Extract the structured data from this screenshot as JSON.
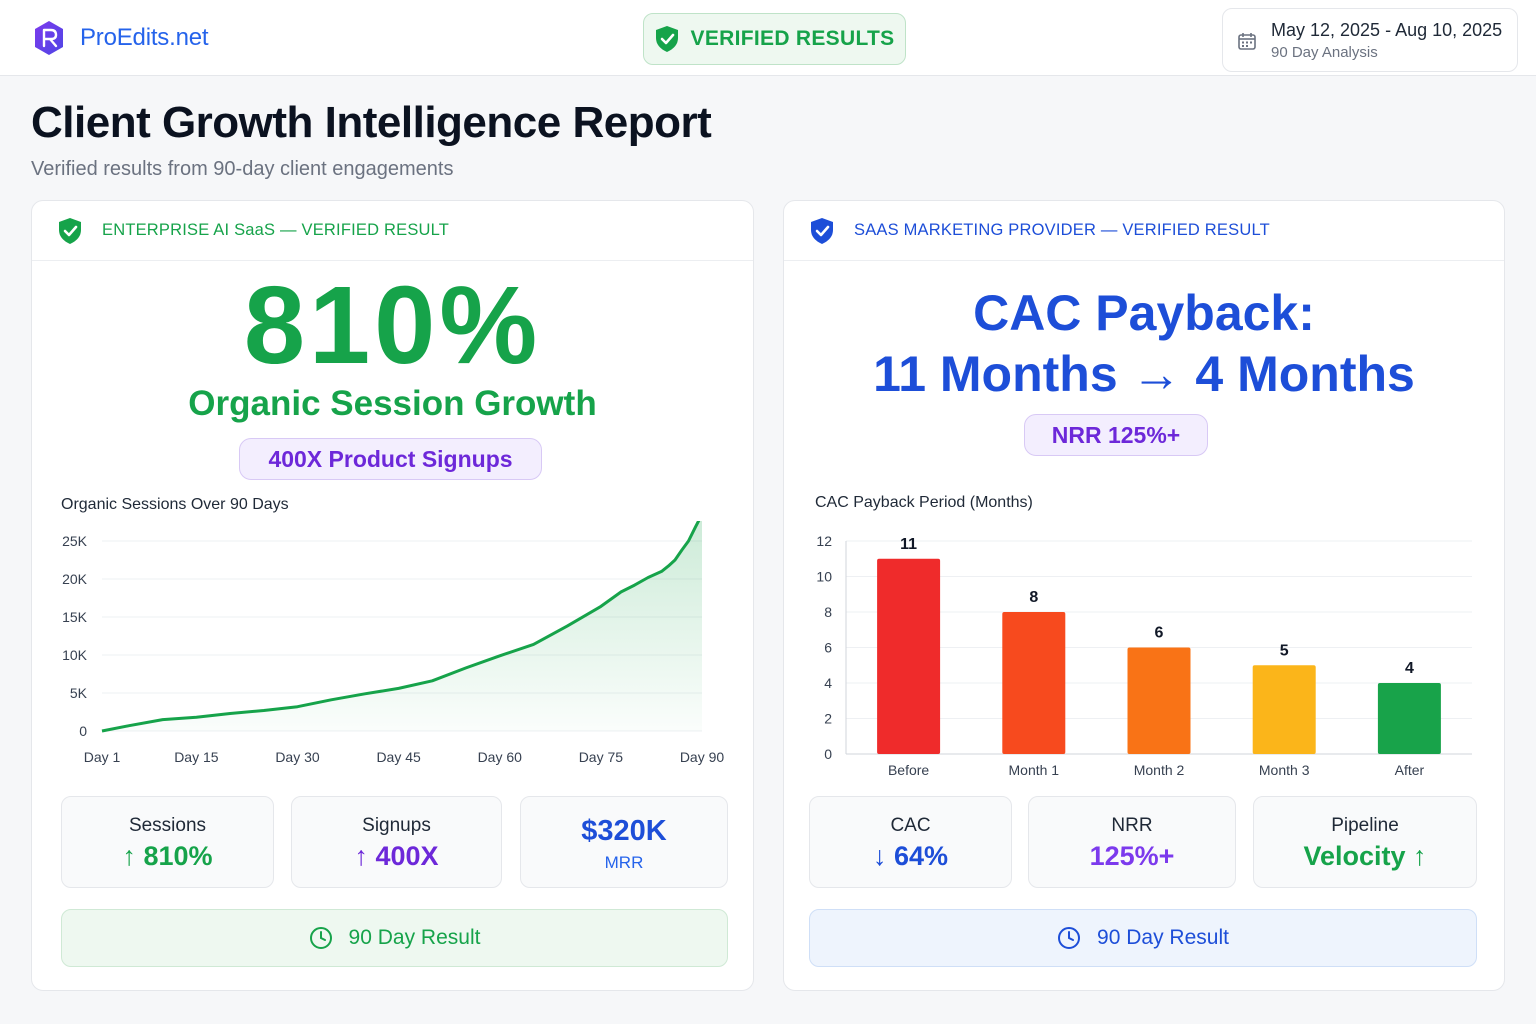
{
  "header": {
    "brand_name": "ProEdits.net",
    "verified_label": "VERIFIED RESULTS",
    "date_range": "May 12, 2025 - Aug 10, 2025",
    "date_caption": "90 Day Analysis"
  },
  "page": {
    "title": "Client Growth Intelligence Report",
    "subtitle": "Verified results from 90-day client engagements"
  },
  "left_card": {
    "header_label": "ENTERPRISE AI SaaS — VERIFIED RESULT",
    "headline_value": "810%",
    "headline_label": "Organic Session Growth",
    "badge": "400X Product Signups",
    "stats": [
      {
        "title": "Sessions",
        "value": "↑ 810%"
      },
      {
        "title": "Signups",
        "value": "↑ 400X"
      },
      {
        "value": "$320K",
        "title": "MRR"
      }
    ],
    "result_label": "90 Day Result"
  },
  "right_card": {
    "header_label": "SAAS MARKETING PROVIDER — VERIFIED RESULT",
    "headline_line1": "CAC Payback:",
    "headline_line2": "11 Months → 4 Months",
    "badge": "NRR 125%+",
    "stats": [
      {
        "title": "CAC",
        "value": "↓ 64%"
      },
      {
        "title": "NRR",
        "value": "125%+"
      },
      {
        "title": "Pipeline",
        "value": "Velocity ↑"
      }
    ],
    "result_label": "90 Day Result"
  },
  "colors": {
    "green": "#16a34a",
    "blue": "#1d4ed8",
    "purple": "#6d28d9",
    "bar_colors": [
      "#ef2b2b",
      "#f74a1e",
      "#f97316",
      "#fbb51a",
      "#18a34a"
    ]
  },
  "chart_data": [
    {
      "type": "line",
      "title": "Organic Sessions Over 90 Days",
      "x_ticks": [
        "Day 1",
        "Day 15",
        "Day 30",
        "Day 45",
        "Day 60",
        "Day 75",
        "Day 90"
      ],
      "y_ticks": [
        "0",
        "5K",
        "10K",
        "15K",
        "20K",
        "25K"
      ],
      "ylim": [
        0,
        25000
      ],
      "grid": true,
      "series": [
        {
          "x": [
            1,
            5,
            10,
            15,
            20,
            25,
            30,
            35,
            40,
            45,
            50,
            55,
            60,
            65,
            70,
            75,
            78,
            80,
            82,
            84,
            85,
            86,
            87,
            88,
            89,
            90
          ],
          "values": [
            0,
            700,
            1500,
            1800,
            2300,
            2700,
            3200,
            4100,
            4900,
            5600,
            6600,
            8300,
            9900,
            11400,
            13800,
            16400,
            18300,
            19200,
            20200,
            21000,
            21700,
            22500,
            23800,
            25000,
            26800,
            28500
          ]
        }
      ]
    },
    {
      "type": "bar",
      "title": "CAC Payback Period (Months)",
      "categories": [
        "Before",
        "Month 1",
        "Month 2",
        "Month 3",
        "After"
      ],
      "values": [
        11,
        8,
        6,
        5,
        4
      ],
      "y_ticks": [
        "0",
        "2",
        "4",
        "6",
        "8",
        "10",
        "12"
      ],
      "ylim": [
        0,
        12
      ],
      "grid": true
    }
  ]
}
